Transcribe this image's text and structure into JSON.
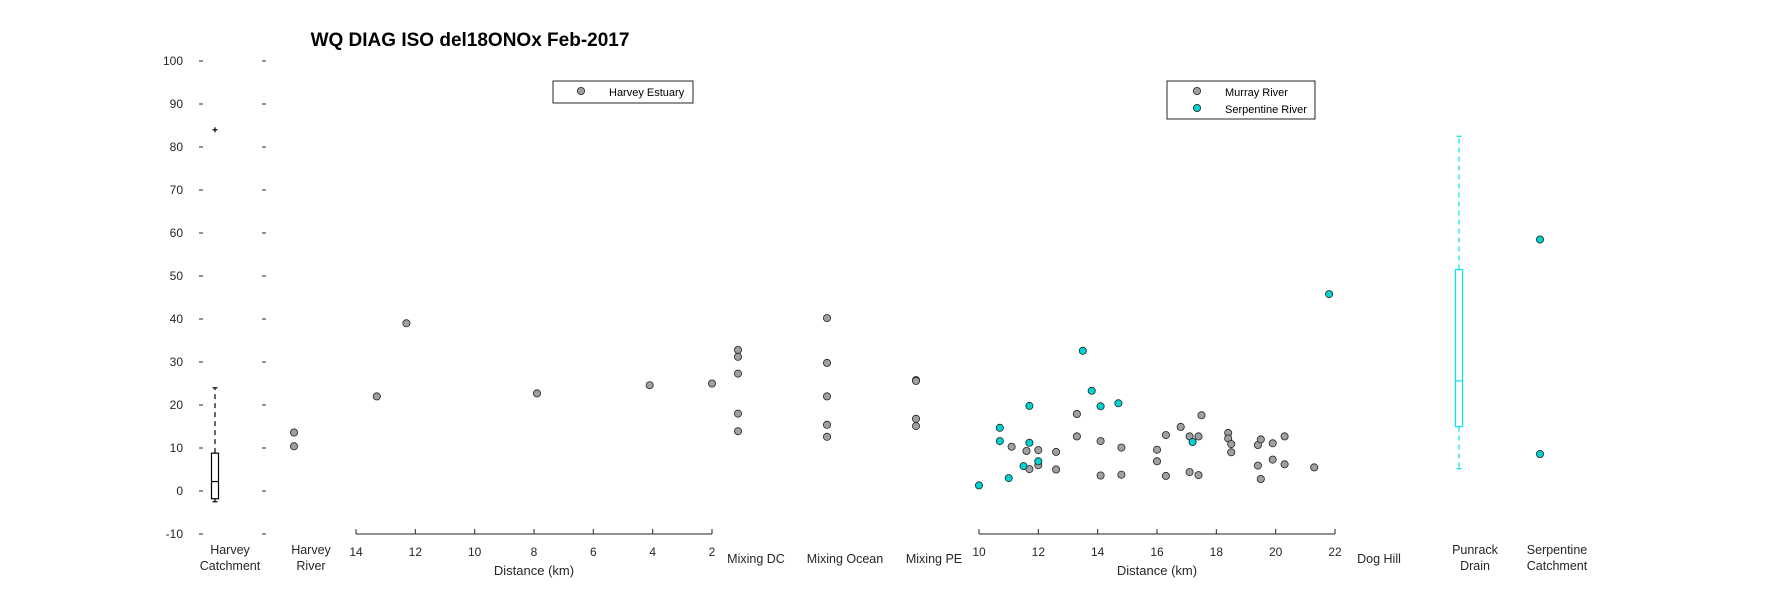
{
  "chart_data": {
    "type": "scatter",
    "title": "WQ DIAG ISO del18ONOx Feb-2017",
    "ylim": [
      -10,
      100
    ],
    "yticks": [
      -10,
      0,
      10,
      20,
      30,
      40,
      50,
      60,
      70,
      80,
      90,
      100
    ],
    "colors": {
      "grey_marker": "#a0a0a0",
      "cyan_marker": "#00d2d2",
      "box_black": "#000000",
      "box_cyan": "#00e5ee"
    },
    "harvey_catchment": {
      "label_lines": [
        "Harvey",
        "Catchment"
      ],
      "type": "box",
      "q1": -1.8,
      "median": 2.2,
      "q3": 8.8,
      "whisker_low": -2.5,
      "whisker_high": 24,
      "outliers": [
        84
      ]
    },
    "harvey_river": {
      "label_lines": [
        "Harvey",
        "River"
      ],
      "values": [
        13.6,
        10.4
      ]
    },
    "harvey_estuary": {
      "xlabel": "Distance (km)",
      "xlim": [
        14,
        2
      ],
      "xticks": [
        14,
        12,
        10,
        8,
        6,
        4,
        2
      ],
      "legend": [
        "Harvey Estuary"
      ],
      "points": [
        [
          13.3,
          22
        ],
        [
          12.3,
          39
        ],
        [
          7.9,
          22.7
        ],
        [
          4.1,
          24.6
        ],
        [
          2.0,
          25
        ]
      ]
    },
    "mixing_dc": {
      "label": "Mixing DC",
      "values": [
        32.8,
        31.2,
        27.3,
        18,
        13.9
      ]
    },
    "mixing_ocean": {
      "label": "Mixing Ocean",
      "values": [
        40.2,
        29.8,
        22,
        15.4,
        12.6
      ]
    },
    "mixing_pe": {
      "label": "Mixing PE",
      "values": [
        25.8,
        25.6,
        16.8,
        15.1
      ]
    },
    "murray_serpentine": {
      "xlabel": "Distance (km)",
      "xlim": [
        10,
        22
      ],
      "xticks": [
        10,
        12,
        14,
        16,
        18,
        20,
        22
      ],
      "legend": [
        "Murray River",
        "Serpentine River"
      ],
      "series": [
        {
          "name": "Murray River",
          "points": [
            [
              11.1,
              10.3
            ],
            [
              11.6,
              9.3
            ],
            [
              11.7,
              5.1
            ],
            [
              12.0,
              9.5
            ],
            [
              12.0,
              6.0
            ],
            [
              12.6,
              9.1
            ],
            [
              12.6,
              5.0
            ],
            [
              13.3,
              17.9
            ],
            [
              13.3,
              12.7
            ],
            [
              14.1,
              11.6
            ],
            [
              14.1,
              3.6
            ],
            [
              14.8,
              10.1
            ],
            [
              14.8,
              3.8
            ],
            [
              16.0,
              9.6
            ],
            [
              16.0,
              6.9
            ],
            [
              16.3,
              13.0
            ],
            [
              16.3,
              3.5
            ],
            [
              16.8,
              14.9
            ],
            [
              17.1,
              12.7
            ],
            [
              17.1,
              4.4
            ],
            [
              17.4,
              12.7
            ],
            [
              17.4,
              3.7
            ],
            [
              17.5,
              17.6
            ],
            [
              18.4,
              13.5
            ],
            [
              18.4,
              12.2
            ],
            [
              18.5,
              10.9
            ],
            [
              18.5,
              9.0
            ],
            [
              19.4,
              10.7
            ],
            [
              19.4,
              5.9
            ],
            [
              19.5,
              12.0
            ],
            [
              19.5,
              2.8
            ],
            [
              19.9,
              11.1
            ],
            [
              19.9,
              7.3
            ],
            [
              20.3,
              12.7
            ],
            [
              20.3,
              6.2
            ],
            [
              21.3,
              5.5
            ]
          ]
        },
        {
          "name": "Serpentine River",
          "points": [
            [
              10.0,
              1.3
            ],
            [
              10.7,
              14.7
            ],
            [
              10.7,
              11.6
            ],
            [
              11.0,
              3.0
            ],
            [
              11.5,
              5.8
            ],
            [
              11.7,
              19.8
            ],
            [
              11.7,
              11.2
            ],
            [
              12.0,
              6.9
            ],
            [
              13.5,
              32.6
            ],
            [
              13.8,
              23.3
            ],
            [
              14.1,
              19.7
            ],
            [
              14.7,
              20.4
            ],
            [
              17.2,
              11.4
            ],
            [
              21.8,
              45.8
            ]
          ]
        }
      ]
    },
    "dog_hill": {
      "label": "Dog Hill",
      "values": []
    },
    "punrack_drain": {
      "label_lines": [
        "Punrack",
        "Drain"
      ],
      "type": "box",
      "q1": 15,
      "median": 25.6,
      "q3": 51.5,
      "whisker_low": 5.2,
      "whisker_high": 82.5
    },
    "serpentine_catchment": {
      "label_lines": [
        "Serpentine",
        "Catchment"
      ],
      "values": [
        58.5,
        8.6
      ]
    }
  }
}
